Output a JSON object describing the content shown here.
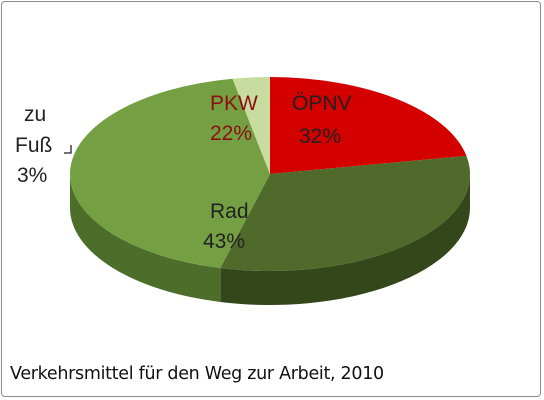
{
  "chart_data": {
    "type": "pie",
    "title": "Verkehrsmittel für den Weg zur Arbeit, 2010",
    "slices": [
      {
        "label": "PKW",
        "value": 22,
        "value_label": "22%",
        "color": "#d40000",
        "side": "#7a0000"
      },
      {
        "label": "ÖPNV",
        "value": 32,
        "value_label": "32%",
        "color": "#4f6a2b",
        "side": "#34471b"
      },
      {
        "label": "Rad",
        "value": 43,
        "value_label": "43%",
        "color": "#74a043",
        "side": "#4c6e2a"
      },
      {
        "label": "zu Fuß",
        "value": 3,
        "value_label": "3%",
        "color": "#c9dca0",
        "side": "#8fa56a"
      }
    ],
    "style": "3d-pie",
    "legend": "none"
  }
}
